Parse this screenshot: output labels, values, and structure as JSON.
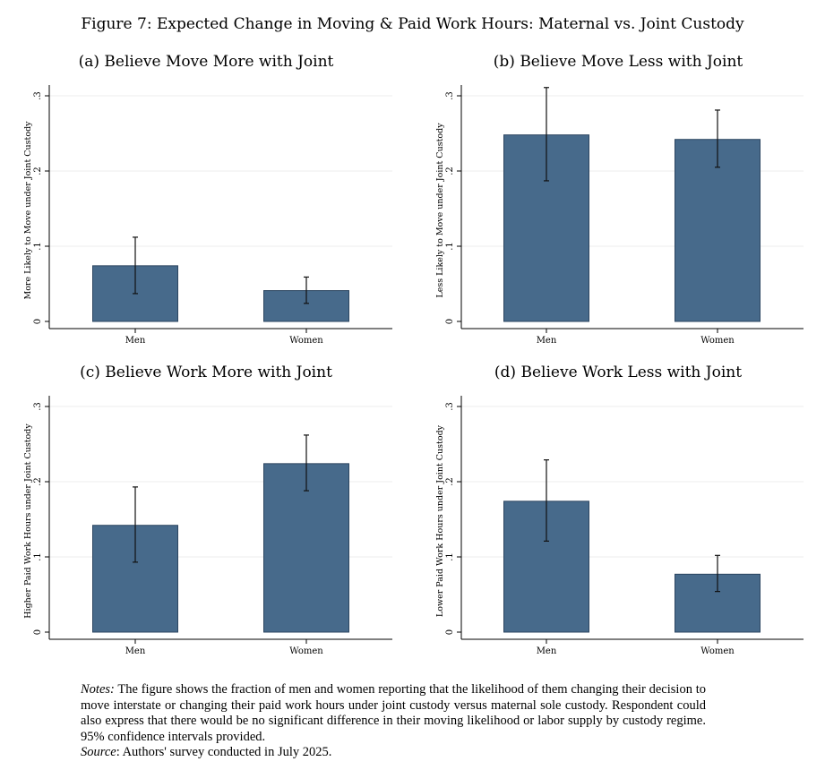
{
  "figure": {
    "title": "Figure 7: Expected Change in Moving & Paid Work Hours: Maternal vs. Joint Custody"
  },
  "chart_data": [
    {
      "type": "bar",
      "title": "(a) Believe Move More with Joint",
      "ylabel": "More Likely to Move under Joint Custody",
      "xlabel": "",
      "categories": [
        "Men",
        "Women"
      ],
      "values": [
        0.074,
        0.041
      ],
      "ci_low": [
        0.037,
        0.024
      ],
      "ci_high": [
        0.112,
        0.059
      ],
      "ylim": [
        0,
        0.3
      ],
      "yticks": [
        0,
        0.1,
        0.2,
        0.3
      ],
      "ytick_labels": [
        "0",
        ".1",
        ".2",
        ".3"
      ],
      "bar_color": "#476a8b"
    },
    {
      "type": "bar",
      "title": "(b) Believe Move Less with Joint",
      "ylabel": "Less Likely to Move under Joint Custody",
      "xlabel": "",
      "categories": [
        "Men",
        "Women"
      ],
      "values": [
        0.248,
        0.242
      ],
      "ci_low": [
        0.187,
        0.205
      ],
      "ci_high": [
        0.311,
        0.281
      ],
      "ylim": [
        0,
        0.3
      ],
      "yticks": [
        0,
        0.1,
        0.2,
        0.3
      ],
      "ytick_labels": [
        "0",
        ".1",
        ".2",
        ".3"
      ],
      "bar_color": "#476a8b"
    },
    {
      "type": "bar",
      "title": "(c) Believe Work More with Joint",
      "ylabel": "Higher Paid Work Hours under Joint Custody",
      "xlabel": "",
      "categories": [
        "Men",
        "Women"
      ],
      "values": [
        0.142,
        0.224
      ],
      "ci_low": [
        0.093,
        0.188
      ],
      "ci_high": [
        0.193,
        0.262
      ],
      "ylim": [
        0,
        0.3
      ],
      "yticks": [
        0,
        0.1,
        0.2,
        0.3
      ],
      "ytick_labels": [
        "0",
        ".1",
        ".2",
        ".3"
      ],
      "bar_color": "#476a8b"
    },
    {
      "type": "bar",
      "title": "(d) Believe Work Less with Joint",
      "ylabel": "Lower Paid Work Hours under Joint Custody",
      "xlabel": "",
      "categories": [
        "Men",
        "Women"
      ],
      "values": [
        0.174,
        0.077
      ],
      "ci_low": [
        0.121,
        0.054
      ],
      "ci_high": [
        0.229,
        0.102
      ],
      "ylim": [
        0,
        0.3
      ],
      "yticks": [
        0,
        0.1,
        0.2,
        0.3
      ],
      "ytick_labels": [
        "0",
        ".1",
        ".2",
        ".3"
      ],
      "bar_color": "#476a8b"
    }
  ],
  "notes": {
    "label": "Notes:",
    "text": "The figure shows the fraction of men and women reporting that the likelihood of them changing their decision to move interstate or changing their paid work hours under joint custody versus maternal sole custody. Respondent could also express that there would be no significant difference in their moving likelihood or labor supply by custody regime. 95% confidence intervals provided.",
    "source_label": "Source",
    "source_text": ": Authors' survey conducted in July 2025."
  }
}
